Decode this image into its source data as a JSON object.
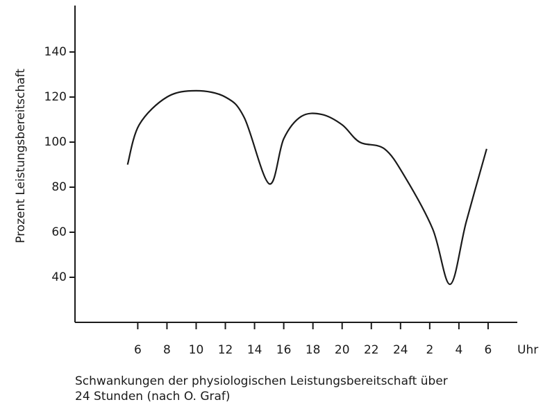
{
  "chart_data": {
    "type": "line",
    "ylabel": "Prozent Leistungsbereitschaft",
    "xlabel": "Uhr",
    "caption": [
      "Schwankungen der physiologischen Leistungsbereitschaft über",
      "24 Stunden (nach O. Graf)"
    ],
    "x": [
      5.3,
      6.1,
      8,
      10,
      12,
      13.3,
      15,
      16,
      17.2,
      18.6,
      20,
      21.2,
      22.9,
      24.3,
      26.2,
      27.4,
      28.5,
      29.9
    ],
    "series": [
      {
        "color": "#1a1a1a",
        "values": [
          90,
          107.7,
          120,
          122.8,
          120,
          110.8,
          81.5,
          101.5,
          111.4,
          112.3,
          107.7,
          100,
          97,
          84.6,
          61.5,
          36.9,
          64.6,
          97
        ]
      }
    ],
    "xlim": [
      1.7,
      32
    ],
    "ylim": [
      20,
      160
    ],
    "xticks": [
      6,
      8,
      10,
      12,
      14,
      16,
      18,
      20,
      22,
      24,
      {
        "value": 26,
        "label": "2"
      },
      {
        "value": 28,
        "label": "4"
      },
      {
        "value": 30,
        "label": "6"
      }
    ],
    "yticks": [
      40,
      60,
      80,
      100,
      120,
      140
    ],
    "grid": false
  }
}
